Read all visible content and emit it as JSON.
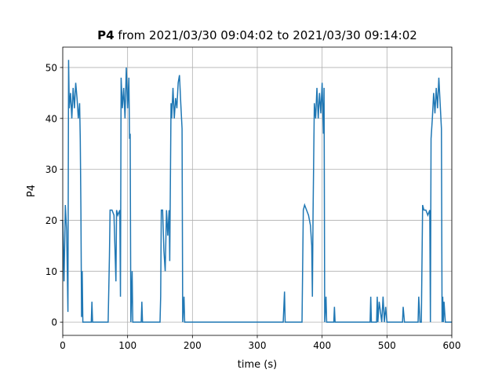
{
  "chart_data": {
    "type": "line",
    "title_name": "P4",
    "title": "from 2021/03/30 09:04:02 to 2021/03/30 09:14:02",
    "x_label": "time (s)",
    "y_label": "P4",
    "xlim": [
      0,
      600
    ],
    "ylim": [
      -2.6,
      54
    ],
    "xticks": [
      0,
      100,
      200,
      300,
      400,
      500,
      600
    ],
    "yticks": [
      0,
      10,
      20,
      30,
      40,
      50
    ],
    "grid": true,
    "series": [
      {
        "name": "P4",
        "color": "#1f77b4",
        "x": [
          0,
          2,
          4,
          6,
          8,
          9,
          10,
          12,
          14,
          16,
          18,
          20,
          22,
          24,
          26,
          27,
          28,
          29,
          30,
          31,
          32,
          40,
          44,
          45,
          46,
          70,
          72,
          73,
          76,
          79,
          82,
          83,
          85,
          88,
          89,
          90,
          92,
          94,
          96,
          98,
          100,
          102,
          103,
          104,
          105,
          107,
          108,
          110,
          121,
          122,
          123,
          150,
          151,
          152,
          154,
          156,
          158,
          160,
          162,
          164,
          165,
          167,
          168,
          170,
          172,
          174,
          176,
          178,
          180,
          182,
          184,
          185,
          187,
          188,
          189,
          190,
          340,
          342,
          343,
          345,
          369,
          371,
          373,
          376,
          379,
          382,
          384,
          385,
          386,
          388,
          390,
          392,
          394,
          396,
          398,
          400,
          402,
          403,
          404,
          406,
          407,
          409,
          418,
          419,
          420,
          474,
          475,
          476,
          478,
          484,
          485,
          486,
          488,
          492,
          494,
          496,
          498,
          500,
          524,
          525,
          527,
          548,
          549,
          551,
          553,
          555,
          557,
          560,
          563,
          566,
          567,
          568,
          570,
          572,
          574,
          576,
          578,
          580,
          582,
          584,
          585,
          586,
          587,
          588,
          590,
          600
        ],
        "values": [
          20,
          8,
          23,
          18,
          2,
          51.5,
          42,
          45,
          40,
          46,
          42,
          47,
          44,
          40,
          43,
          36,
          22,
          1,
          10,
          0,
          0,
          0,
          0,
          4,
          0,
          0,
          13,
          22,
          22,
          21,
          8,
          22,
          21,
          22,
          5,
          48,
          42,
          46,
          40,
          50,
          42,
          48,
          36,
          37,
          0,
          10,
          0,
          0,
          0,
          4,
          0,
          0,
          5,
          22,
          22,
          14,
          10,
          22,
          17,
          22,
          12,
          43,
          40,
          46,
          40,
          44,
          42,
          47,
          48.5,
          43,
          38,
          0,
          5,
          0,
          0,
          0,
          0,
          6,
          0,
          0,
          0,
          22,
          23,
          22,
          21,
          19,
          15,
          5,
          21,
          43,
          40,
          46,
          40,
          45,
          41,
          47,
          37,
          46,
          0,
          5,
          0,
          0,
          0,
          3,
          0,
          0,
          5,
          0,
          0,
          0,
          5,
          0,
          4,
          0,
          5,
          0,
          3,
          0,
          0,
          3,
          0,
          0,
          5,
          0,
          0,
          23,
          22,
          22,
          21,
          22,
          0,
          36,
          40,
          45,
          41,
          46,
          42,
          48,
          43,
          38,
          0,
          5,
          0,
          4,
          0,
          0
        ]
      }
    ]
  }
}
